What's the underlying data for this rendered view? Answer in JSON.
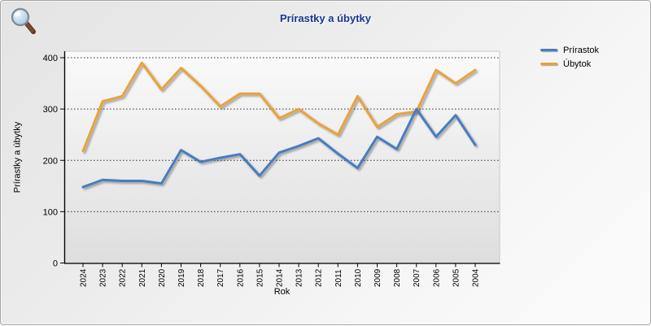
{
  "header": {
    "icon": "magnifier-icon"
  },
  "colors": {
    "title": "#17368C",
    "increase_line": "#4A7CBE",
    "decrease_line": "#E9A23C",
    "plot_top": "#FAFAFA",
    "plot_bottom": "#DEDEDE",
    "axis": "#000000"
  },
  "chart_data": {
    "type": "line",
    "title": "Prírastky a úbytky",
    "xlabel": "Rok",
    "ylabel": "Prírastky a úbytky",
    "categories": [
      "2024",
      "2023",
      "2022",
      "2021",
      "2020",
      "2019",
      "2018",
      "2017",
      "2016",
      "2015",
      "2014",
      "2013",
      "2012",
      "2011",
      "2010",
      "2009",
      "2008",
      "2007",
      "2006",
      "2005",
      "2004"
    ],
    "series": [
      {
        "name": "Prírastok",
        "color": "#4A7CBE",
        "values": [
          148,
          162,
          160,
          160,
          155,
          220,
          197,
          205,
          212,
          170,
          215,
          228,
          243,
          213,
          185,
          246,
          222,
          300,
          246,
          288,
          230
        ]
      },
      {
        "name": "Úbytok",
        "color": "#E9A23C",
        "values": [
          218,
          315,
          325,
          390,
          338,
          380,
          345,
          305,
          330,
          330,
          282,
          300,
          272,
          250,
          325,
          265,
          290,
          295,
          376,
          350,
          376
        ]
      }
    ],
    "ylim": [
      0,
      400
    ],
    "yticks": [
      0,
      100,
      200,
      300,
      400
    ],
    "grid": "horizontal-dotted",
    "legend_position": "top-right",
    "x_label_rotation": "vertical"
  }
}
